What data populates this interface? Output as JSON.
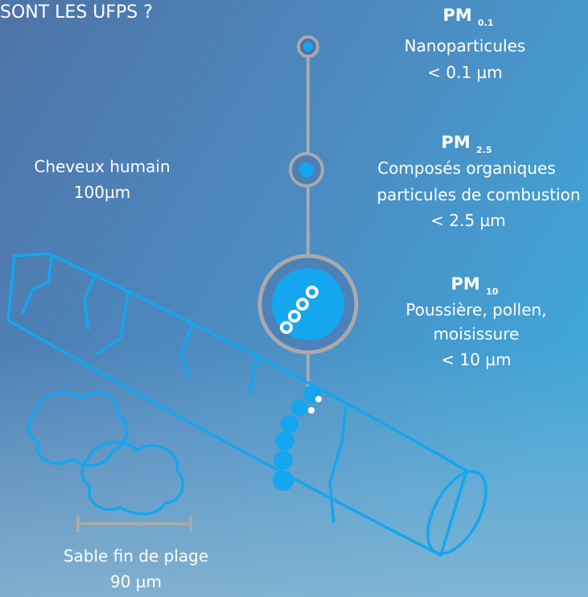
{
  "header": {
    "title": "SONT LES UFPS ?"
  },
  "particles": [
    {
      "label": "PM",
      "subscript": "0.1",
      "lines": [
        "Nanoparticules",
        "< 0.1 µm"
      ]
    },
    {
      "label": "PM",
      "subscript": "2.5",
      "lines": [
        "Composés organiques",
        "particules de combustion",
        "< 2.5 µm"
      ]
    },
    {
      "label": "PM",
      "subscript": "10",
      "lines": [
        "Poussière, pollen,",
        "moisissure",
        "< 10 µm"
      ]
    }
  ],
  "hair": {
    "lines": [
      "Cheveux humain",
      "100µm"
    ]
  },
  "sand": {
    "lines": [
      "Sable fin de plage",
      "90 µm"
    ]
  }
}
